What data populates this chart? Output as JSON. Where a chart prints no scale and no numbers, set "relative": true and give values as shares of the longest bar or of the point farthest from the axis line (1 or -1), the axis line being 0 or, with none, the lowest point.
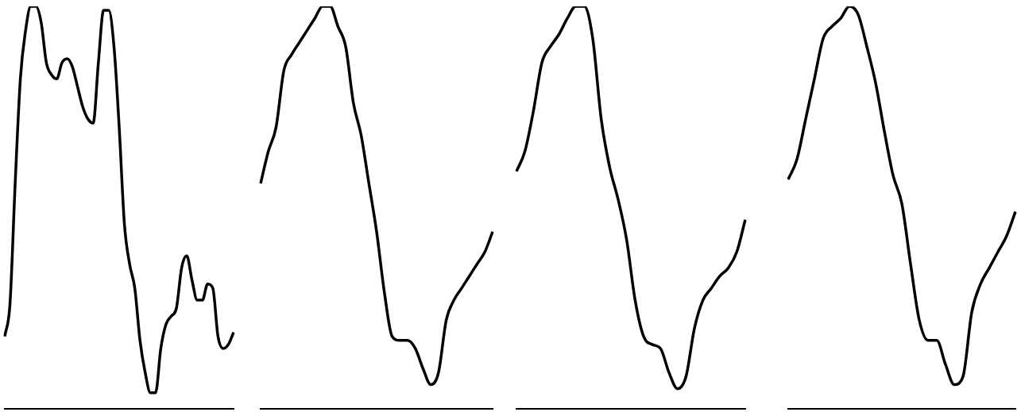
{
  "chart_data": [
    {
      "type": "line",
      "relative": true,
      "color": "#000000",
      "categories": [
        null,
        null,
        null,
        null,
        null,
        null,
        null,
        null,
        null,
        null,
        null,
        null,
        null,
        null,
        null,
        null,
        null,
        null,
        null,
        null,
        null,
        null,
        null,
        null,
        null,
        null,
        null,
        null,
        null,
        null,
        null,
        null,
        null,
        null,
        null,
        null,
        null,
        null,
        null,
        null,
        null,
        null,
        null,
        null,
        null
      ],
      "values": [
        0.18,
        0.26,
        0.56,
        0.82,
        0.94,
        1.0,
        1.0,
        0.96,
        0.86,
        0.83,
        0.82,
        0.86,
        0.87,
        0.85,
        0.8,
        0.75,
        0.72,
        0.71,
        0.86,
        0.99,
        0.99,
        0.9,
        0.7,
        0.46,
        0.36,
        0.3,
        0.17,
        0.09,
        0.04,
        0.04,
        0.15,
        0.21,
        0.23,
        0.25,
        0.35,
        0.38,
        0.32,
        0.27,
        0.27,
        0.31,
        0.3,
        0.18,
        0.15,
        0.16,
        0.19
      ]
    },
    {
      "type": "line",
      "relative": true,
      "color": "#000000",
      "categories": [
        null,
        null,
        null,
        null,
        null,
        null,
        null,
        null,
        null,
        null,
        null,
        null,
        null,
        null,
        null,
        null,
        null,
        null,
        null,
        null,
        null,
        null,
        null,
        null,
        null,
        null,
        null,
        null,
        null,
        null,
        null
      ],
      "values": [
        0.56,
        0.64,
        0.7,
        0.84,
        0.88,
        0.91,
        0.94,
        0.97,
        1.0,
        1.0,
        0.95,
        0.9,
        0.76,
        0.68,
        0.56,
        0.44,
        0.29,
        0.18,
        0.17,
        0.17,
        0.15,
        0.1,
        0.06,
        0.09,
        0.22,
        0.27,
        0.3,
        0.33,
        0.36,
        0.39,
        0.44
      ]
    },
    {
      "type": "line",
      "relative": true,
      "color": "#000000",
      "categories": [
        null,
        null,
        null,
        null,
        null,
        null,
        null,
        null,
        null,
        null,
        null,
        null,
        null,
        null,
        null,
        null,
        null,
        null,
        null,
        null,
        null,
        null,
        null,
        null,
        null,
        null,
        null,
        null
      ],
      "values": [
        0.59,
        0.64,
        0.74,
        0.86,
        0.9,
        0.93,
        0.97,
        1.0,
        1.0,
        0.92,
        0.72,
        0.6,
        0.52,
        0.42,
        0.27,
        0.18,
        0.16,
        0.15,
        0.09,
        0.05,
        0.08,
        0.2,
        0.27,
        0.3,
        0.33,
        0.35,
        0.39,
        0.47
      ]
    },
    {
      "type": "line",
      "relative": true,
      "color": "#000000",
      "categories": [
        null,
        null,
        null,
        null,
        null,
        null,
        null,
        null,
        null,
        null,
        null,
        null,
        null,
        null,
        null,
        null,
        null,
        null,
        null,
        null,
        null,
        null,
        null,
        null,
        null,
        null,
        null
      ],
      "values": [
        0.57,
        0.62,
        0.72,
        0.82,
        0.92,
        0.95,
        0.97,
        1.0,
        0.98,
        0.9,
        0.81,
        0.69,
        0.58,
        0.51,
        0.36,
        0.22,
        0.17,
        0.17,
        0.11,
        0.06,
        0.08,
        0.24,
        0.31,
        0.35,
        0.39,
        0.43,
        0.49
      ]
    }
  ]
}
